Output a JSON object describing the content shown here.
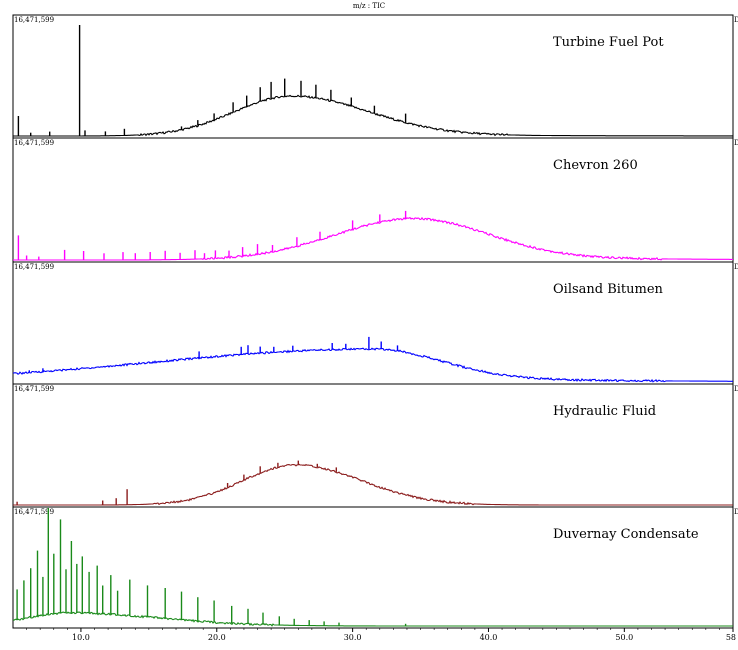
{
  "chart_data": {
    "type": "line",
    "title": "m/z : TIC",
    "y_max_label": "16,471,599",
    "corner_label": "Da",
    "x_ticks": [
      10.0,
      20.0,
      30.0,
      40.0,
      50.0,
      58
    ],
    "x_tick_labels": [
      "10.0",
      "20.0",
      "30.0",
      "40.0",
      "50.0",
      "58"
    ],
    "xlim": [
      5.0,
      58
    ],
    "ylim": [
      0,
      16471599
    ],
    "grid": false,
    "stacked_panels": true,
    "series": [
      {
        "name": "Turbine Fuel Pot",
        "color": "#000000",
        "hump": {
          "center": 25.5,
          "sigma_left": 4.2,
          "sigma_right": 5.6,
          "height": 0.36,
          "tail": 0.015
        },
        "peaks": [
          [
            5.4,
            0.18
          ],
          [
            6.3,
            0.03
          ],
          [
            7.7,
            0.04
          ],
          [
            9.9,
            1.0
          ],
          [
            10.3,
            0.05
          ],
          [
            11.8,
            0.04
          ],
          [
            13.2,
            0.06
          ],
          [
            17.4,
            0.03
          ],
          [
            18.6,
            0.05
          ],
          [
            19.8,
            0.06
          ],
          [
            21.2,
            0.09
          ],
          [
            22.2,
            0.1
          ],
          [
            23.2,
            0.13
          ],
          [
            24.0,
            0.15
          ],
          [
            25.0,
            0.16
          ],
          [
            26.2,
            0.14
          ],
          [
            27.3,
            0.12
          ],
          [
            28.4,
            0.1
          ],
          [
            29.9,
            0.08
          ],
          [
            31.6,
            0.07
          ],
          [
            33.9,
            0.08
          ]
        ]
      },
      {
        "name": "Chevron 260",
        "color": "#ff00ff",
        "hump": {
          "center": 34.5,
          "sigma_left": 5.8,
          "sigma_right": 5.4,
          "height": 0.37,
          "tail": 0.04
        },
        "peaks": [
          [
            5.4,
            0.22
          ],
          [
            6.0,
            0.04
          ],
          [
            6.9,
            0.03
          ],
          [
            8.8,
            0.09
          ],
          [
            10.2,
            0.08
          ],
          [
            11.7,
            0.06
          ],
          [
            13.1,
            0.07
          ],
          [
            14.0,
            0.06
          ],
          [
            15.1,
            0.07
          ],
          [
            16.2,
            0.08
          ],
          [
            17.3,
            0.06
          ],
          [
            18.4,
            0.08
          ],
          [
            19.1,
            0.05
          ],
          [
            19.9,
            0.07
          ],
          [
            20.9,
            0.06
          ],
          [
            21.9,
            0.08
          ],
          [
            23.0,
            0.09
          ],
          [
            24.1,
            0.06
          ],
          [
            25.9,
            0.08
          ],
          [
            27.6,
            0.07
          ],
          [
            30.0,
            0.08
          ],
          [
            32.0,
            0.07
          ],
          [
            33.9,
            0.07
          ]
        ]
      },
      {
        "name": "Oilsand Bitumen",
        "color": "#0000ff",
        "hump": {
          "center": 31.5,
          "sigma_left": 16.0,
          "sigma_right": 4.8,
          "height": 0.3,
          "tail": 0.06
        },
        "peaks": [
          [
            6.2,
            0.02
          ],
          [
            7.2,
            0.03
          ],
          [
            18.7,
            0.06
          ],
          [
            21.8,
            0.07
          ],
          [
            22.3,
            0.08
          ],
          [
            23.2,
            0.06
          ],
          [
            24.2,
            0.05
          ],
          [
            25.6,
            0.05
          ],
          [
            28.5,
            0.06
          ],
          [
            29.5,
            0.05
          ],
          [
            31.2,
            0.11
          ],
          [
            32.1,
            0.07
          ],
          [
            33.3,
            0.05
          ]
        ]
      },
      {
        "name": "Hydraulic Fluid",
        "color": "#8b1c1c",
        "hump": {
          "center": 25.8,
          "sigma_left": 3.9,
          "sigma_right": 4.9,
          "height": 0.36,
          "tail": 0.0
        },
        "peaks": [
          [
            5.3,
            0.03
          ],
          [
            11.6,
            0.04
          ],
          [
            12.6,
            0.06
          ],
          [
            13.4,
            0.14
          ],
          [
            20.8,
            0.04
          ],
          [
            22.0,
            0.05
          ],
          [
            23.2,
            0.06
          ],
          [
            24.5,
            0.04
          ],
          [
            26.0,
            0.04
          ],
          [
            27.4,
            0.03
          ],
          [
            28.8,
            0.04
          ]
        ]
      },
      {
        "name": "Duvernay Condensate",
        "color": "#1a8a1a",
        "hump": {
          "center": 9.0,
          "sigma_left": 3.0,
          "sigma_right": 6.8,
          "height": 0.12,
          "tail": 0.0
        },
        "peaks": [
          [
            5.3,
            0.28
          ],
          [
            5.8,
            0.35
          ],
          [
            6.3,
            0.45
          ],
          [
            6.8,
            0.6
          ],
          [
            7.2,
            0.35
          ],
          [
            7.6,
            1.0
          ],
          [
            8.0,
            0.55
          ],
          [
            8.5,
            0.86
          ],
          [
            8.9,
            0.4
          ],
          [
            9.3,
            0.66
          ],
          [
            9.7,
            0.45
          ],
          [
            10.1,
            0.52
          ],
          [
            10.6,
            0.38
          ],
          [
            11.2,
            0.44
          ],
          [
            11.6,
            0.26
          ],
          [
            12.2,
            0.36
          ],
          [
            12.7,
            0.22
          ],
          [
            13.6,
            0.33
          ],
          [
            14.9,
            0.29
          ],
          [
            16.2,
            0.28
          ],
          [
            17.4,
            0.26
          ],
          [
            18.6,
            0.22
          ],
          [
            19.8,
            0.2
          ],
          [
            21.1,
            0.16
          ],
          [
            22.3,
            0.14
          ],
          [
            23.4,
            0.11
          ],
          [
            24.6,
            0.08
          ],
          [
            25.7,
            0.06
          ],
          [
            26.8,
            0.05
          ],
          [
            27.9,
            0.04
          ],
          [
            29.0,
            0.03
          ],
          [
            33.9,
            0.02
          ]
        ]
      }
    ]
  }
}
